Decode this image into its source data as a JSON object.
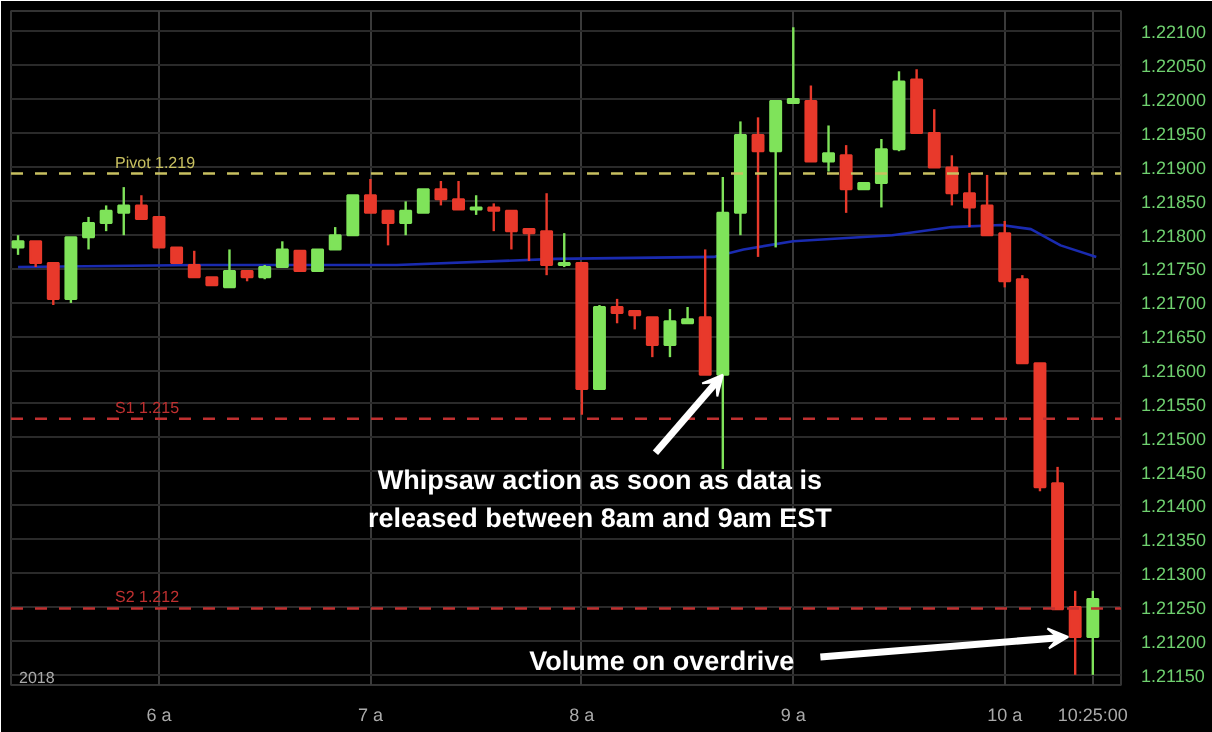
{
  "chart_data": {
    "type": "candlestick",
    "x": [
      5.3333,
      5.4167,
      5.5,
      5.5833,
      5.6667,
      5.75,
      5.8333,
      5.9167,
      6,
      6.0833,
      6.1667,
      6.25,
      6.3333,
      6.4167,
      6.5,
      6.5833,
      6.6667,
      6.75,
      6.8333,
      6.9167,
      7,
      7.0833,
      7.1667,
      7.25,
      7.3333,
      7.4167,
      7.5,
      7.5833,
      7.6667,
      7.75,
      7.8333,
      7.9167,
      8,
      8.0833,
      8.1667,
      8.25,
      8.3333,
      8.4167,
      8.5,
      8.5833,
      8.6667,
      8.75,
      8.8333,
      8.9167,
      9,
      9.0833,
      9.1667,
      9.25,
      9.3333,
      9.4167,
      9.5,
      9.5833,
      9.6667,
      9.75,
      9.8333,
      9.9167,
      10,
      10.0833,
      10.1667,
      10.25,
      10.3333,
      10.4167
    ],
    "ohlc": [
      [
        1.21781,
        1.21799,
        1.2177,
        1.2179
      ],
      [
        1.2179,
        1.2179,
        1.21752,
        1.21758
      ],
      [
        1.21758,
        1.21758,
        1.21696,
        1.21705
      ],
      [
        1.21705,
        1.21796,
        1.21699,
        1.21796
      ],
      [
        1.21796,
        1.21826,
        1.21778,
        1.21817
      ],
      [
        1.21817,
        1.21843,
        1.21805,
        1.21835
      ],
      [
        1.21832,
        1.2187,
        1.21799,
        1.21843
      ],
      [
        1.21843,
        1.21858,
        1.21823,
        1.21823
      ],
      [
        1.21826,
        1.21826,
        1.21781,
        1.21781
      ],
      [
        1.21781,
        1.21781,
        1.21758,
        1.21758
      ],
      [
        1.21755,
        1.21776,
        1.21737,
        1.21737
      ],
      [
        1.21737,
        1.21737,
        1.21725,
        1.21725
      ],
      [
        1.21722,
        1.21778,
        1.21722,
        1.21746
      ],
      [
        1.21746,
        1.21746,
        1.21731,
        1.21737
      ],
      [
        1.21737,
        1.21755,
        1.21734,
        1.21752
      ],
      [
        1.21752,
        1.2179,
        1.21752,
        1.21778
      ],
      [
        1.21776,
        1.21776,
        1.21746,
        1.21746
      ],
      [
        1.21746,
        1.21778,
        1.21746,
        1.21778
      ],
      [
        1.21778,
        1.21811,
        1.21778,
        1.21799
      ],
      [
        1.21799,
        1.21858,
        1.21799,
        1.21858
      ],
      [
        1.21858,
        1.21882,
        1.21832,
        1.21832
      ],
      [
        1.21835,
        1.21835,
        1.21784,
        1.21817
      ],
      [
        1.21817,
        1.21849,
        1.21799,
        1.21835
      ],
      [
        1.21832,
        1.21867,
        1.21832,
        1.21867
      ],
      [
        1.21867,
        1.21879,
        1.21843,
        1.21852
      ],
      [
        1.21852,
        1.21879,
        1.21837,
        1.21837
      ],
      [
        1.21837,
        1.21858,
        1.21829,
        1.2184
      ],
      [
        1.2184,
        1.21846,
        1.21805,
        1.21835
      ],
      [
        1.21835,
        1.21835,
        1.21778,
        1.21805
      ],
      [
        1.21808,
        1.21808,
        1.21761,
        1.21802
      ],
      [
        1.21805,
        1.21861,
        1.2174,
        1.21755
      ],
      [
        1.21755,
        1.21802,
        1.21752,
        1.21758
      ],
      [
        1.21758,
        1.21758,
        1.21534,
        1.21572
      ],
      [
        1.21572,
        1.21696,
        1.21572,
        1.21693
      ],
      [
        1.21693,
        1.21705,
        1.21669,
        1.21684
      ],
      [
        1.21687,
        1.21687,
        1.2166,
        1.21681
      ],
      [
        1.21678,
        1.21678,
        1.21619,
        1.21637
      ],
      [
        1.21637,
        1.2169,
        1.21619,
        1.21672
      ],
      [
        1.21669,
        1.21693,
        1.21669,
        1.21675
      ],
      [
        1.21678,
        1.21778,
        1.21593,
        1.21593
      ],
      [
        1.21593,
        1.21885,
        1.21454,
        1.21832
      ],
      [
        1.21832,
        1.21967,
        1.21799,
        1.21947
      ],
      [
        1.21947,
        1.21973,
        1.21767,
        1.21923
      ],
      [
        1.21923,
        1.21997,
        1.21781,
        1.21997
      ],
      [
        1.21994,
        1.22106,
        1.21994,
        1.22
      ],
      [
        1.21997,
        1.2202,
        1.21908,
        1.21908
      ],
      [
        1.21908,
        1.21961,
        1.21893,
        1.2192
      ],
      [
        1.21917,
        1.21932,
        1.21832,
        1.21867
      ],
      [
        1.21867,
        1.21876,
        1.21867,
        1.21876
      ],
      [
        1.21876,
        1.21941,
        1.2184,
        1.21926
      ],
      [
        1.21926,
        1.22041,
        1.21923,
        1.22026
      ],
      [
        1.22029,
        1.22044,
        1.2195,
        1.2195
      ],
      [
        1.2195,
        1.21985,
        1.21899,
        1.21899
      ],
      [
        1.21899,
        1.21917,
        1.21843,
        1.21861
      ],
      [
        1.21861,
        1.21891,
        1.21811,
        1.2184
      ],
      [
        1.21843,
        1.21888,
        1.21799,
        1.21799
      ],
      [
        1.21802,
        1.2182,
        1.21722,
        1.21731
      ],
      [
        1.21734,
        1.2174,
        1.2161,
        1.2161
      ],
      [
        1.2161,
        1.2161,
        1.21421,
        1.21427
      ],
      [
        1.21433,
        1.21457,
        1.21247,
        1.21247
      ],
      [
        1.2125,
        1.21274,
        1.2115,
        1.21206
      ],
      [
        1.21206,
        1.21274,
        1.2115,
        1.21262
      ]
    ],
    "colors": [
      "#7fe35a",
      "#e8392b",
      "#e8392b",
      "#7fe35a",
      "#7fe35a",
      "#7fe35a",
      "#7fe35a",
      "#e8392b",
      "#e8392b",
      "#e8392b",
      "#e8392b",
      "#e8392b",
      "#7fe35a",
      "#e8392b",
      "#7fe35a",
      "#7fe35a",
      "#e8392b",
      "#7fe35a",
      "#7fe35a",
      "#7fe35a",
      "#e8392b",
      "#e8392b",
      "#7fe35a",
      "#7fe35a",
      "#e8392b",
      "#e8392b",
      "#7fe35a",
      "#e8392b",
      "#e8392b",
      "#e8392b",
      "#e8392b",
      "#7fe35a",
      "#e8392b",
      "#7fe35a",
      "#e8392b",
      "#e8392b",
      "#e8392b",
      "#7fe35a",
      "#7fe35a",
      "#e8392b",
      "#7fe35a",
      "#7fe35a",
      "#e8392b",
      "#7fe35a",
      "#7fe35a",
      "#e8392b",
      "#7fe35a",
      "#e8392b",
      "#7fe35a",
      "#7fe35a",
      "#7fe35a",
      "#e8392b",
      "#e8392b",
      "#e8392b",
      "#e8392b",
      "#e8392b",
      "#e8392b",
      "#e8392b",
      "#e8392b",
      "#e8392b",
      "#e8392b",
      "#7fe35a"
    ],
    "series": [
      {
        "type": "line",
        "color": "#1a2bb0",
        "x": [
          5.3333,
          6.187,
          7.125,
          7.874,
          8.624,
          8.765,
          8.999,
          9.468,
          9.749,
          9.983,
          10.124,
          10.264,
          10.433
        ],
        "values": [
          1.21752,
          1.21755,
          1.21755,
          1.21764,
          1.21767,
          1.21778,
          1.2179,
          1.21799,
          1.21811,
          1.21814,
          1.21808,
          1.21784,
          1.21767
        ]
      }
    ],
    "xlim": [
      5.3,
      10.55
    ],
    "xticks": [
      {
        "value": 6,
        "label": "6 a"
      },
      {
        "value": 7,
        "label": "7 a"
      },
      {
        "value": 8,
        "label": "8 a"
      },
      {
        "value": 9,
        "label": "9 a"
      },
      {
        "value": 10,
        "label": "10 a"
      },
      {
        "value": 10.4167,
        "label": "10:25:00"
      }
    ],
    "ylim": [
      1.21135,
      1.2213
    ],
    "yticks": [
      {
        "value": 1.2115,
        "label": "1.21150"
      },
      {
        "value": 1.212,
        "label": "1.21200"
      },
      {
        "value": 1.2125,
        "label": "1.21250"
      },
      {
        "value": 1.213,
        "label": "1.21300"
      },
      {
        "value": 1.2135,
        "label": "1.21350"
      },
      {
        "value": 1.214,
        "label": "1.21400"
      },
      {
        "value": 1.2145,
        "label": "1.21450"
      },
      {
        "value": 1.215,
        "label": "1.21500"
      },
      {
        "value": 1.2155,
        "label": "1.21550"
      },
      {
        "value": 1.216,
        "label": "1.21600"
      },
      {
        "value": 1.2165,
        "label": "1.21650"
      },
      {
        "value": 1.217,
        "label": "1.21700"
      },
      {
        "value": 1.2175,
        "label": "1.21750"
      },
      {
        "value": 1.218,
        "label": "1.21800"
      },
      {
        "value": 1.2185,
        "label": "1.21850"
      },
      {
        "value": 1.219,
        "label": "1.21900"
      },
      {
        "value": 1.2195,
        "label": "1.21950"
      },
      {
        "value": 1.22,
        "label": "1.22000"
      },
      {
        "value": 1.2205,
        "label": "1.22050"
      },
      {
        "value": 1.221,
        "label": "1.22100"
      }
    ],
    "ref_lines": [
      {
        "axis": "y",
        "value": 1.2189,
        "label": "Pivot 1.219",
        "color": "#c8c060",
        "line_style": "dashed"
      },
      {
        "axis": "y",
        "value": 1.21528,
        "label": "S1 1.215",
        "color": "#c03030",
        "line_style": "dashed"
      },
      {
        "axis": "y",
        "value": 1.21248,
        "label": "S2 1.212",
        "color": "#c03030",
        "line_style": "dashed"
      }
    ],
    "annotations": [
      {
        "text": "Whipsaw action as soon as data is\nreleased between 8am and 9am EST",
        "x": 8.6667,
        "y": 1.21593
      },
      {
        "text": "Volume on overdrive",
        "x": 10.3,
        "y": 1.21206
      },
      "2018"
    ],
    "grid": true
  }
}
